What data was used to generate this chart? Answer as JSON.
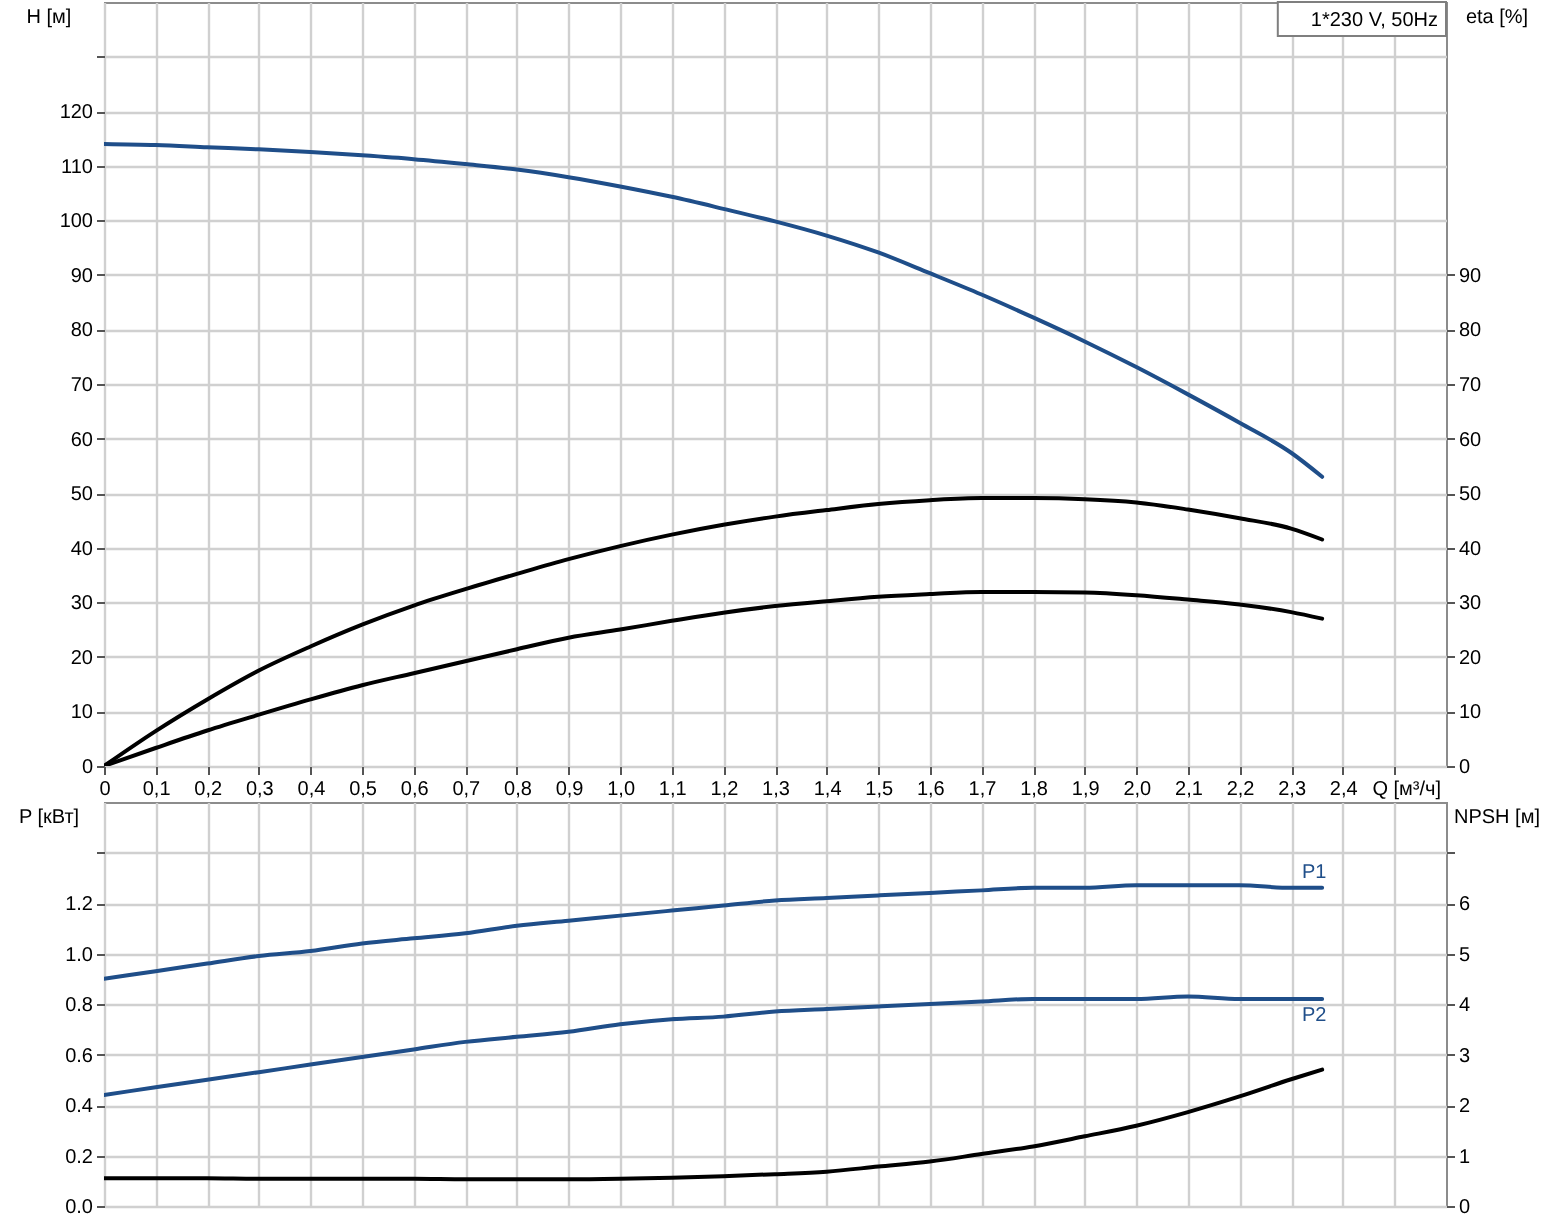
{
  "chart_data": [
    {
      "type": "line",
      "title": "1*230 V, 50Hz",
      "xlabel": "Q [м³/ч]",
      "ylabel": "H [м]",
      "y2label": "eta [%]",
      "x": [
        0,
        0.1,
        0.2,
        0.3,
        0.4,
        0.5,
        0.6,
        0.7,
        0.8,
        0.9,
        1,
        1.1,
        1.2,
        1.3,
        1.4,
        1.5,
        1.6,
        1.7,
        1.8,
        1.9,
        2,
        2.1,
        2.2,
        2.3,
        2.36
      ],
      "xlim": [
        0,
        2.6
      ],
      "xticks": [
        0,
        {
          "value": 0.1,
          "label": "0,1"
        },
        {
          "value": 0.2,
          "label": "0,2"
        },
        {
          "value": 0.3,
          "label": "0,3"
        },
        {
          "value": 0.4,
          "label": "0,4"
        },
        {
          "value": 0.5,
          "label": "0,5"
        },
        {
          "value": 0.6,
          "label": "0,6"
        },
        {
          "value": 0.7,
          "label": "0,7"
        },
        {
          "value": 0.8,
          "label": "0,8"
        },
        {
          "value": 0.9,
          "label": "0,9"
        },
        {
          "value": 1,
          "label": "1,0"
        },
        {
          "value": 1.1,
          "label": "1,1"
        },
        {
          "value": 1.2,
          "label": "1,2"
        },
        {
          "value": 1.3,
          "label": "1,3"
        },
        {
          "value": 1.4,
          "label": "1,4"
        },
        {
          "value": 1.5,
          "label": "1,5"
        },
        {
          "value": 1.6,
          "label": "1,6"
        },
        {
          "value": 1.7,
          "label": "1,7"
        },
        {
          "value": 1.8,
          "label": "1,8"
        },
        {
          "value": 1.9,
          "label": "1,9"
        },
        {
          "value": 2,
          "label": "2,0"
        },
        {
          "value": 2.1,
          "label": "2,1"
        },
        {
          "value": 2.2,
          "label": "2,2"
        },
        {
          "value": 2.3,
          "label": "2,3"
        },
        {
          "value": 2.4,
          "label": "2,4"
        },
        {
          "value": 2.5,
          "label": null
        }
      ],
      "ylim": [
        0,
        140
      ],
      "yticks": [
        0,
        10,
        20,
        30,
        40,
        50,
        60,
        70,
        80,
        90,
        100,
        110,
        120,
        {
          "value": 130,
          "label": null
        }
      ],
      "y2lim": [
        0,
        140
      ],
      "y2ticks": [
        0,
        10,
        20,
        30,
        40,
        50,
        60,
        70,
        80,
        90
      ],
      "grid": true,
      "series": [
        {
          "color": "#1f4e89",
          "values": [
            114.0,
            113.8,
            113.4,
            113.0,
            112.5,
            111.9,
            111.2,
            110.3,
            109.3,
            107.9,
            106.2,
            104.3,
            102.1,
            99.8,
            97.2,
            94.1,
            90.3,
            86.4,
            82.2,
            77.8,
            73.1,
            68.1,
            62.9,
            57.4,
            53.0
          ]
        },
        {
          "color": "#000000",
          "axis": "y2",
          "values": [
            0,
            6.4,
            12.2,
            17.5,
            21.9,
            25.9,
            29.4,
            32.4,
            35.2,
            37.9,
            40.3,
            42.4,
            44.2,
            45.7,
            46.9,
            48.0,
            48.7,
            49.1,
            49.1,
            48.9,
            48.3,
            47.0,
            45.4,
            43.5,
            41.5
          ]
        },
        {
          "color": "#000000",
          "axis": "y2",
          "values": [
            0,
            3.3,
            6.5,
            9.4,
            12.2,
            14.8,
            17.0,
            19.2,
            21.4,
            23.5,
            25.0,
            26.6,
            28.1,
            29.3,
            30.2,
            31.0,
            31.5,
            31.9,
            31.9,
            31.8,
            31.3,
            30.5,
            29.6,
            28.2,
            27.0
          ]
        }
      ]
    },
    {
      "type": "line",
      "ylabel": "P [кВт]",
      "y2label": "NPSH [м]",
      "x": [
        0,
        0.1,
        0.2,
        0.3,
        0.4,
        0.5,
        0.6,
        0.7,
        0.8,
        0.9,
        1,
        1.1,
        1.2,
        1.3,
        1.4,
        1.5,
        1.6,
        1.7,
        1.8,
        1.9,
        2,
        2.1,
        2.2,
        2.3,
        2.36
      ],
      "xlim": [
        0,
        2.6
      ],
      "xticks": [
        0,
        0.1,
        0.2,
        0.3,
        0.4,
        0.5,
        0.6,
        0.7,
        0.8,
        0.9,
        1,
        1.1,
        1.2,
        1.3,
        1.4,
        1.5,
        1.6,
        1.7,
        1.8,
        1.9,
        2,
        2.1,
        2.2,
        2.3,
        2.4,
        2.5
      ],
      "ylim": [
        0,
        1.6
      ],
      "yticks": [
        {
          "value": 0,
          "label": "0.0"
        },
        0.2,
        0.4,
        0.6,
        0.8,
        {
          "value": 1,
          "label": "1.0"
        },
        1.2,
        {
          "value": 1.4,
          "label": null
        }
      ],
      "y2lim": [
        0,
        8
      ],
      "y2ticks": [
        0,
        1,
        2,
        3,
        4,
        5,
        6,
        {
          "value": 7,
          "label": null
        }
      ],
      "grid": true,
      "tick_labels": "y",
      "series": [
        {
          "name": "P1",
          "color": "#1f4e89",
          "values": [
            0.9,
            0.93,
            0.96,
            0.99,
            1.01,
            1.04,
            1.06,
            1.08,
            1.11,
            1.13,
            1.15,
            1.17,
            1.19,
            1.21,
            1.22,
            1.23,
            1.24,
            1.25,
            1.26,
            1.26,
            1.27,
            1.27,
            1.27,
            1.26,
            1.26
          ]
        },
        {
          "name": "P2",
          "color": "#1f4e89",
          "values": [
            0.44,
            0.47,
            0.5,
            0.53,
            0.56,
            0.59,
            0.62,
            0.65,
            0.67,
            0.69,
            0.72,
            0.74,
            0.75,
            0.77,
            0.78,
            0.79,
            0.8,
            0.81,
            0.82,
            0.82,
            0.82,
            0.83,
            0.82,
            0.82,
            0.82
          ]
        },
        {
          "color": "#000000",
          "axis": "y2",
          "values": [
            0.55,
            0.55,
            0.55,
            0.54,
            0.54,
            0.54,
            0.54,
            0.53,
            0.53,
            0.53,
            0.54,
            0.56,
            0.59,
            0.63,
            0.68,
            0.78,
            0.88,
            1.03,
            1.18,
            1.38,
            1.59,
            1.86,
            2.17,
            2.51,
            2.7
          ]
        }
      ]
    }
  ]
}
